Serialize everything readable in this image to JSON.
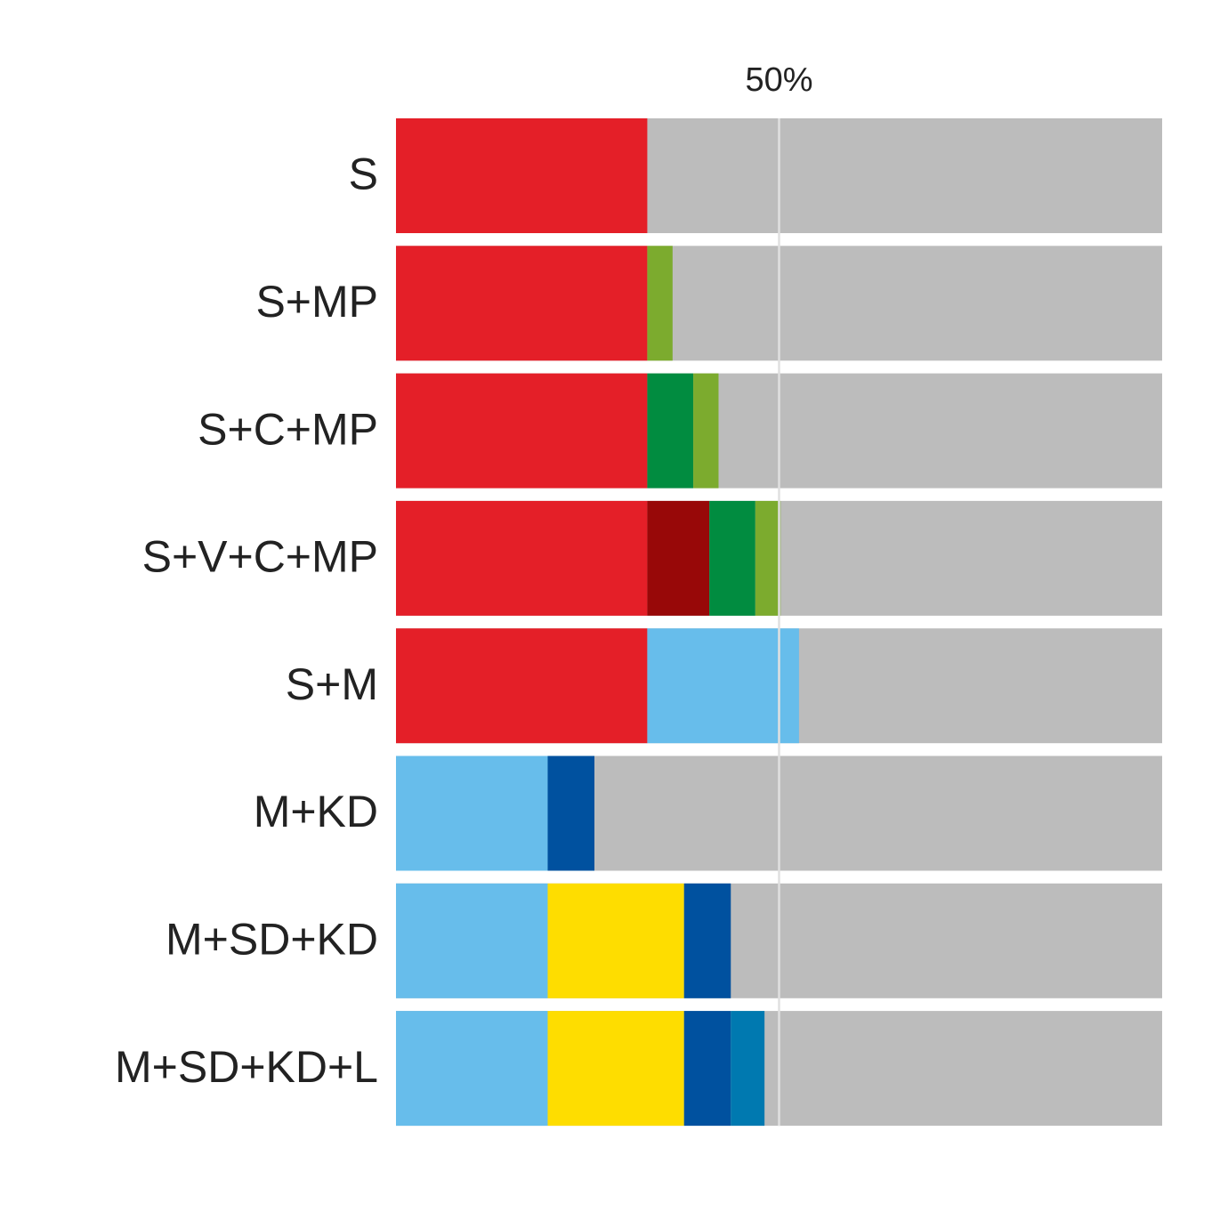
{
  "chart_data": {
    "type": "stacked-bar-horizontal",
    "categories": [
      "S",
      "S+MP",
      "S+C+MP",
      "S+V+C+MP",
      "S+M",
      "M+KD",
      "M+SD+KD",
      "M+SD+KD+L"
    ],
    "series": [
      {
        "name": "S",
        "color": "#e41f28",
        "values": [
          32.8,
          32.8,
          32.8,
          32.8,
          32.8,
          null,
          null,
          null
        ]
      },
      {
        "name": "M",
        "color": "#67bdeb",
        "values": [
          null,
          null,
          null,
          null,
          19.8,
          19.8,
          19.8,
          19.8
        ]
      },
      {
        "name": "SD",
        "color": "#fedd00",
        "values": [
          null,
          null,
          null,
          null,
          null,
          null,
          17.8,
          17.8
        ]
      },
      {
        "name": "V",
        "color": "#980808",
        "values": [
          null,
          null,
          null,
          8.1,
          null,
          null,
          null,
          null
        ]
      },
      {
        "name": "C",
        "color": "#018c40",
        "values": [
          null,
          null,
          6.0,
          6.0,
          null,
          null,
          null,
          null
        ]
      },
      {
        "name": "KD",
        "color": "#00519f",
        "values": [
          null,
          null,
          null,
          null,
          null,
          6.1,
          6.1,
          6.1
        ]
      },
      {
        "name": "MP",
        "color": "#7cab2e",
        "values": [
          null,
          3.3,
          3.3,
          3.3,
          null,
          null,
          null,
          null
        ]
      },
      {
        "name": "L",
        "color": "#0079b0",
        "values": [
          null,
          null,
          null,
          null,
          null,
          null,
          null,
          4.4
        ]
      }
    ],
    "xlim": [
      0,
      100
    ],
    "xticks": [
      {
        "value": 50,
        "label": "50%"
      }
    ],
    "background_color": "#bcbcbc",
    "grid": true
  }
}
